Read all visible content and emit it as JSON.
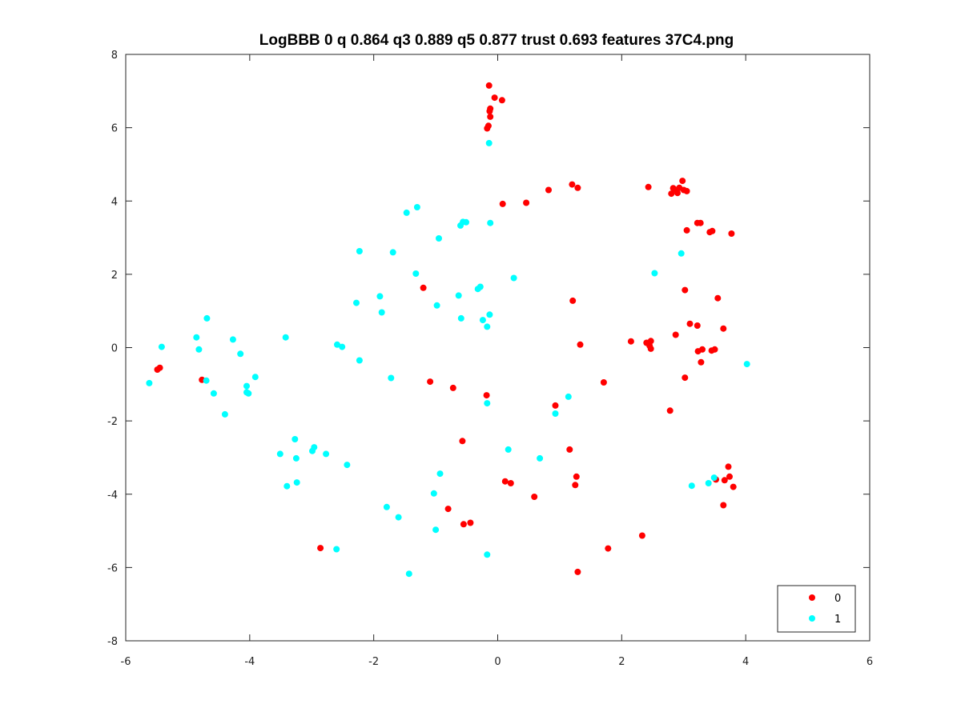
{
  "chart_data": {
    "type": "scatter",
    "title": "LogBBB 0 q 0.864 q3 0.889 q5 0.877 trust 0.693 features 37C4.png",
    "xlabel": "",
    "ylabel": "",
    "xlim": [
      -6,
      6
    ],
    "ylim": [
      -8,
      8
    ],
    "xticks": [
      -6,
      -4,
      -2,
      0,
      2,
      4,
      6
    ],
    "yticks": [
      -8,
      -6,
      -4,
      -2,
      0,
      2,
      4,
      6,
      8
    ],
    "grid": false,
    "legend_position": "bottom-right",
    "series": [
      {
        "name": "0",
        "color": "#ff0000",
        "points": [
          [
            -0.14,
            7.15
          ],
          [
            -0.05,
            6.82
          ],
          [
            0.07,
            6.75
          ],
          [
            -0.12,
            6.52
          ],
          [
            -0.13,
            6.45
          ],
          [
            -0.12,
            6.3
          ],
          [
            -0.15,
            6.05
          ],
          [
            -0.17,
            5.98
          ],
          [
            1.2,
            4.45
          ],
          [
            1.29,
            4.36
          ],
          [
            0.82,
            4.3
          ],
          [
            2.43,
            4.38
          ],
          [
            2.8,
            4.2
          ],
          [
            2.83,
            4.35
          ],
          [
            2.88,
            4.3
          ],
          [
            2.9,
            4.22
          ],
          [
            2.93,
            4.36
          ],
          [
            2.98,
            4.55
          ],
          [
            3.0,
            4.3
          ],
          [
            3.05,
            4.27
          ],
          [
            0.46,
            3.95
          ],
          [
            0.08,
            3.92
          ],
          [
            3.22,
            3.4
          ],
          [
            3.27,
            3.4
          ],
          [
            3.05,
            3.2
          ],
          [
            3.42,
            3.15
          ],
          [
            3.46,
            3.18
          ],
          [
            3.77,
            3.11
          ],
          [
            -1.2,
            1.63
          ],
          [
            3.02,
            1.57
          ],
          [
            3.55,
            1.35
          ],
          [
            1.21,
            1.28
          ],
          [
            3.1,
            0.65
          ],
          [
            3.22,
            0.6
          ],
          [
            3.64,
            0.52
          ],
          [
            2.87,
            0.35
          ],
          [
            2.15,
            0.17
          ],
          [
            2.4,
            0.13
          ],
          [
            2.47,
            0.18
          ],
          [
            2.45,
            0.05
          ],
          [
            2.47,
            -0.03
          ],
          [
            1.33,
            0.08
          ],
          [
            3.3,
            -0.05
          ],
          [
            3.23,
            -0.1
          ],
          [
            3.45,
            -0.08
          ],
          [
            3.5,
            -0.05
          ],
          [
            3.28,
            -0.4
          ],
          [
            3.02,
            -0.82
          ],
          [
            1.71,
            -0.95
          ],
          [
            -5.49,
            -0.6
          ],
          [
            -5.45,
            -0.55
          ],
          [
            -4.77,
            -0.88
          ],
          [
            -1.09,
            -0.93
          ],
          [
            -0.72,
            -1.1
          ],
          [
            -0.18,
            -1.3
          ],
          [
            0.93,
            -1.58
          ],
          [
            2.78,
            -1.72
          ],
          [
            -0.57,
            -2.55
          ],
          [
            1.16,
            -2.78
          ],
          [
            3.72,
            -3.25
          ],
          [
            1.27,
            -3.52
          ],
          [
            3.74,
            -3.52
          ],
          [
            3.52,
            -3.6
          ],
          [
            3.66,
            -3.62
          ],
          [
            3.8,
            -3.8
          ],
          [
            0.12,
            -3.65
          ],
          [
            0.21,
            -3.7
          ],
          [
            1.25,
            -3.75
          ],
          [
            0.59,
            -4.07
          ],
          [
            3.64,
            -4.3
          ],
          [
            -0.8,
            -4.4
          ],
          [
            -0.55,
            -4.82
          ],
          [
            -0.44,
            -4.78
          ],
          [
            2.33,
            -5.13
          ],
          [
            -2.86,
            -5.47
          ],
          [
            1.78,
            -5.48
          ],
          [
            1.29,
            -6.12
          ]
        ]
      },
      {
        "name": "1",
        "color": "#00ffff",
        "points": [
          [
            -0.14,
            5.58
          ],
          [
            -1.3,
            3.83
          ],
          [
            -1.47,
            3.68
          ],
          [
            -0.51,
            3.42
          ],
          [
            -0.56,
            3.43
          ],
          [
            -0.6,
            3.33
          ],
          [
            -0.12,
            3.4
          ],
          [
            -0.95,
            2.98
          ],
          [
            -2.23,
            2.63
          ],
          [
            -1.69,
            2.6
          ],
          [
            2.96,
            2.57
          ],
          [
            2.53,
            2.03
          ],
          [
            -1.32,
            2.02
          ],
          [
            0.26,
            1.9
          ],
          [
            -0.28,
            1.66
          ],
          [
            -0.32,
            1.6
          ],
          [
            -1.9,
            1.4
          ],
          [
            -0.63,
            1.42
          ],
          [
            -2.28,
            1.22
          ],
          [
            -0.98,
            1.15
          ],
          [
            -1.87,
            0.96
          ],
          [
            -0.13,
            0.9
          ],
          [
            -4.69,
            0.8
          ],
          [
            -0.59,
            0.8
          ],
          [
            -0.24,
            0.75
          ],
          [
            -0.17,
            0.57
          ],
          [
            -4.86,
            0.28
          ],
          [
            -3.42,
            0.28
          ],
          [
            -4.27,
            0.22
          ],
          [
            -2.59,
            0.08
          ],
          [
            -2.51,
            0.02
          ],
          [
            -5.42,
            0.02
          ],
          [
            -4.82,
            -0.05
          ],
          [
            -4.15,
            -0.17
          ],
          [
            -2.23,
            -0.35
          ],
          [
            4.02,
            -0.45
          ],
          [
            -3.91,
            -0.8
          ],
          [
            -1.72,
            -0.83
          ],
          [
            -4.7,
            -0.9
          ],
          [
            -5.62,
            -0.97
          ],
          [
            -4.05,
            -1.05
          ],
          [
            -4.05,
            -1.22
          ],
          [
            -4.58,
            -1.25
          ],
          [
            -4.02,
            -1.25
          ],
          [
            1.14,
            -1.34
          ],
          [
            -0.17,
            -1.52
          ],
          [
            0.93,
            -1.8
          ],
          [
            -4.4,
            -1.82
          ],
          [
            -3.27,
            -2.5
          ],
          [
            -2.96,
            -2.72
          ],
          [
            -2.99,
            -2.82
          ],
          [
            -3.51,
            -2.9
          ],
          [
            -2.77,
            -2.9
          ],
          [
            0.17,
            -2.78
          ],
          [
            0.68,
            -3.02
          ],
          [
            -3.25,
            -3.02
          ],
          [
            -2.43,
            -3.2
          ],
          [
            -0.93,
            -3.44
          ],
          [
            3.49,
            -3.55
          ],
          [
            -3.24,
            -3.68
          ],
          [
            3.4,
            -3.7
          ],
          [
            -3.4,
            -3.78
          ],
          [
            3.13,
            -3.77
          ],
          [
            -1.03,
            -3.98
          ],
          [
            -1.79,
            -4.35
          ],
          [
            -1.6,
            -4.63
          ],
          [
            -1.0,
            -4.97
          ],
          [
            -2.6,
            -5.5
          ],
          [
            -0.17,
            -5.65
          ],
          [
            -1.43,
            -6.17
          ]
        ]
      }
    ]
  }
}
